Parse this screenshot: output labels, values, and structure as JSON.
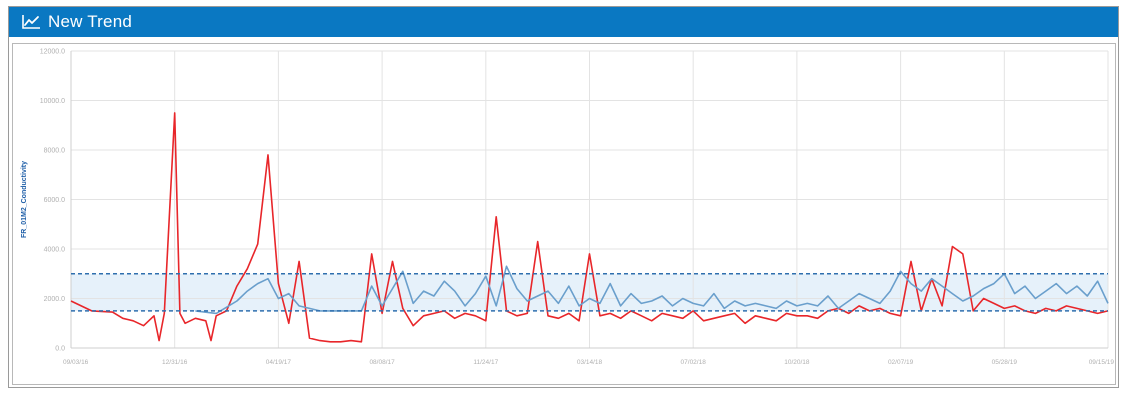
{
  "window": {
    "title": "New Trend",
    "icon": "line-chart-icon"
  },
  "colors": {
    "titlebar": "#0a78c2",
    "series_red": "#e8262a",
    "series_blue": "#6a9fcc",
    "band_fill": "#e6f1fa",
    "band_line": "#2f6fae",
    "grid": "#e3e3e3"
  },
  "chart_data": {
    "type": "line",
    "ylabel": "FR_01M2_Conductivity",
    "ylim": [
      0,
      12000
    ],
    "y_ticks": [
      "0.0",
      "2000.0",
      "4000.0",
      "6000.0",
      "8000.0",
      "10000.0",
      "12000.0"
    ],
    "x_ticks": [
      "09/03/16",
      "12/31/16",
      "04/19/17",
      "08/08/17",
      "11/24/17",
      "03/14/18",
      "07/02/18",
      "10/20/18",
      "02/07/19",
      "05/28/19",
      "09/15/19"
    ],
    "grid": true,
    "band": {
      "low": 1500,
      "high": 3000
    },
    "series": [
      {
        "color": "#e8262a",
        "x": [
          0,
          2,
          4,
          5,
          6,
          7,
          8,
          8.5,
          9,
          10,
          10.5,
          11,
          12,
          13,
          13.5,
          14,
          15,
          16,
          17,
          18,
          19,
          20,
          21,
          22,
          23,
          24,
          25,
          26,
          27,
          28,
          29,
          30,
          31,
          32,
          33,
          34,
          35,
          36,
          37,
          38,
          39,
          40,
          41,
          42,
          43,
          44,
          45,
          46,
          47,
          48,
          49,
          50,
          51,
          52,
          53,
          54,
          55,
          56,
          57,
          58,
          59,
          60,
          61,
          62,
          63,
          64,
          65,
          66,
          67,
          68,
          69,
          70,
          71,
          72,
          73,
          74,
          75,
          76,
          77,
          78,
          79,
          80,
          81,
          82,
          83,
          84,
          85,
          86,
          87,
          88,
          89,
          90,
          91,
          92,
          93,
          94,
          95,
          96,
          97,
          98,
          99,
          100
        ],
        "values": [
          1900,
          1500,
          1450,
          1200,
          1100,
          900,
          1300,
          300,
          1400,
          9500,
          1400,
          1000,
          1200,
          1100,
          300,
          1300,
          1500,
          2500,
          3200,
          4200,
          7800,
          2600,
          1000,
          3500,
          400,
          300,
          250,
          250,
          300,
          250,
          3800,
          1400,
          3500,
          1600,
          900,
          1300,
          1400,
          1500,
          1200,
          1400,
          1300,
          1100,
          5300,
          1500,
          1300,
          1400,
          4300,
          1300,
          1200,
          1400,
          1100,
          3800,
          1300,
          1400,
          1200,
          1500,
          1300,
          1100,
          1400,
          1300,
          1200,
          1500,
          1100,
          1200,
          1300,
          1400,
          1000,
          1300,
          1200,
          1100,
          1400,
          1300,
          1300,
          1200,
          1500,
          1600,
          1400,
          1700,
          1500,
          1600,
          1400,
          1300,
          3500,
          1500,
          2800,
          1700,
          4100,
          3800,
          1500,
          2000,
          1800,
          1600,
          1700,
          1500,
          1400,
          1600,
          1500,
          1700,
          1600,
          1500,
          1400,
          1500
        ]
      },
      {
        "color": "#6a9fcc",
        "x": [
          12,
          14,
          16,
          17,
          18,
          19,
          20,
          21,
          22,
          24,
          26,
          28,
          29,
          30,
          31,
          32,
          33,
          34,
          35,
          36,
          37,
          38,
          39,
          40,
          41,
          42,
          43,
          44,
          45,
          46,
          47,
          48,
          49,
          50,
          51,
          52,
          53,
          54,
          55,
          56,
          57,
          58,
          59,
          60,
          61,
          62,
          63,
          64,
          65,
          66,
          67,
          68,
          69,
          70,
          71,
          72,
          73,
          74,
          75,
          76,
          77,
          78,
          79,
          80,
          81,
          82,
          83,
          84,
          85,
          86,
          87,
          88,
          89,
          90,
          91,
          92,
          93,
          94,
          95,
          96,
          97,
          98,
          99,
          100
        ],
        "values": [
          1500,
          1400,
          1900,
          2300,
          2600,
          2800,
          2000,
          2200,
          1700,
          1500,
          1500,
          1500,
          2500,
          1700,
          2400,
          3100,
          1800,
          2300,
          2100,
          2700,
          2300,
          1700,
          2200,
          2900,
          1700,
          3300,
          2400,
          1900,
          2100,
          2300,
          1800,
          2500,
          1700,
          2000,
          1800,
          2600,
          1700,
          2200,
          1800,
          1900,
          2100,
          1700,
          2000,
          1800,
          1700,
          2200,
          1600,
          1900,
          1700,
          1800,
          1700,
          1600,
          1900,
          1700,
          1800,
          1700,
          2100,
          1600,
          1900,
          2200,
          2000,
          1800,
          2300,
          3100,
          2600,
          2300,
          2800,
          2500,
          2200,
          1900,
          2100,
          2400,
          2600,
          3000,
          2200,
          2500,
          2000,
          2300,
          2600,
          2200,
          2500,
          2100,
          2700,
          1800
        ]
      }
    ]
  }
}
